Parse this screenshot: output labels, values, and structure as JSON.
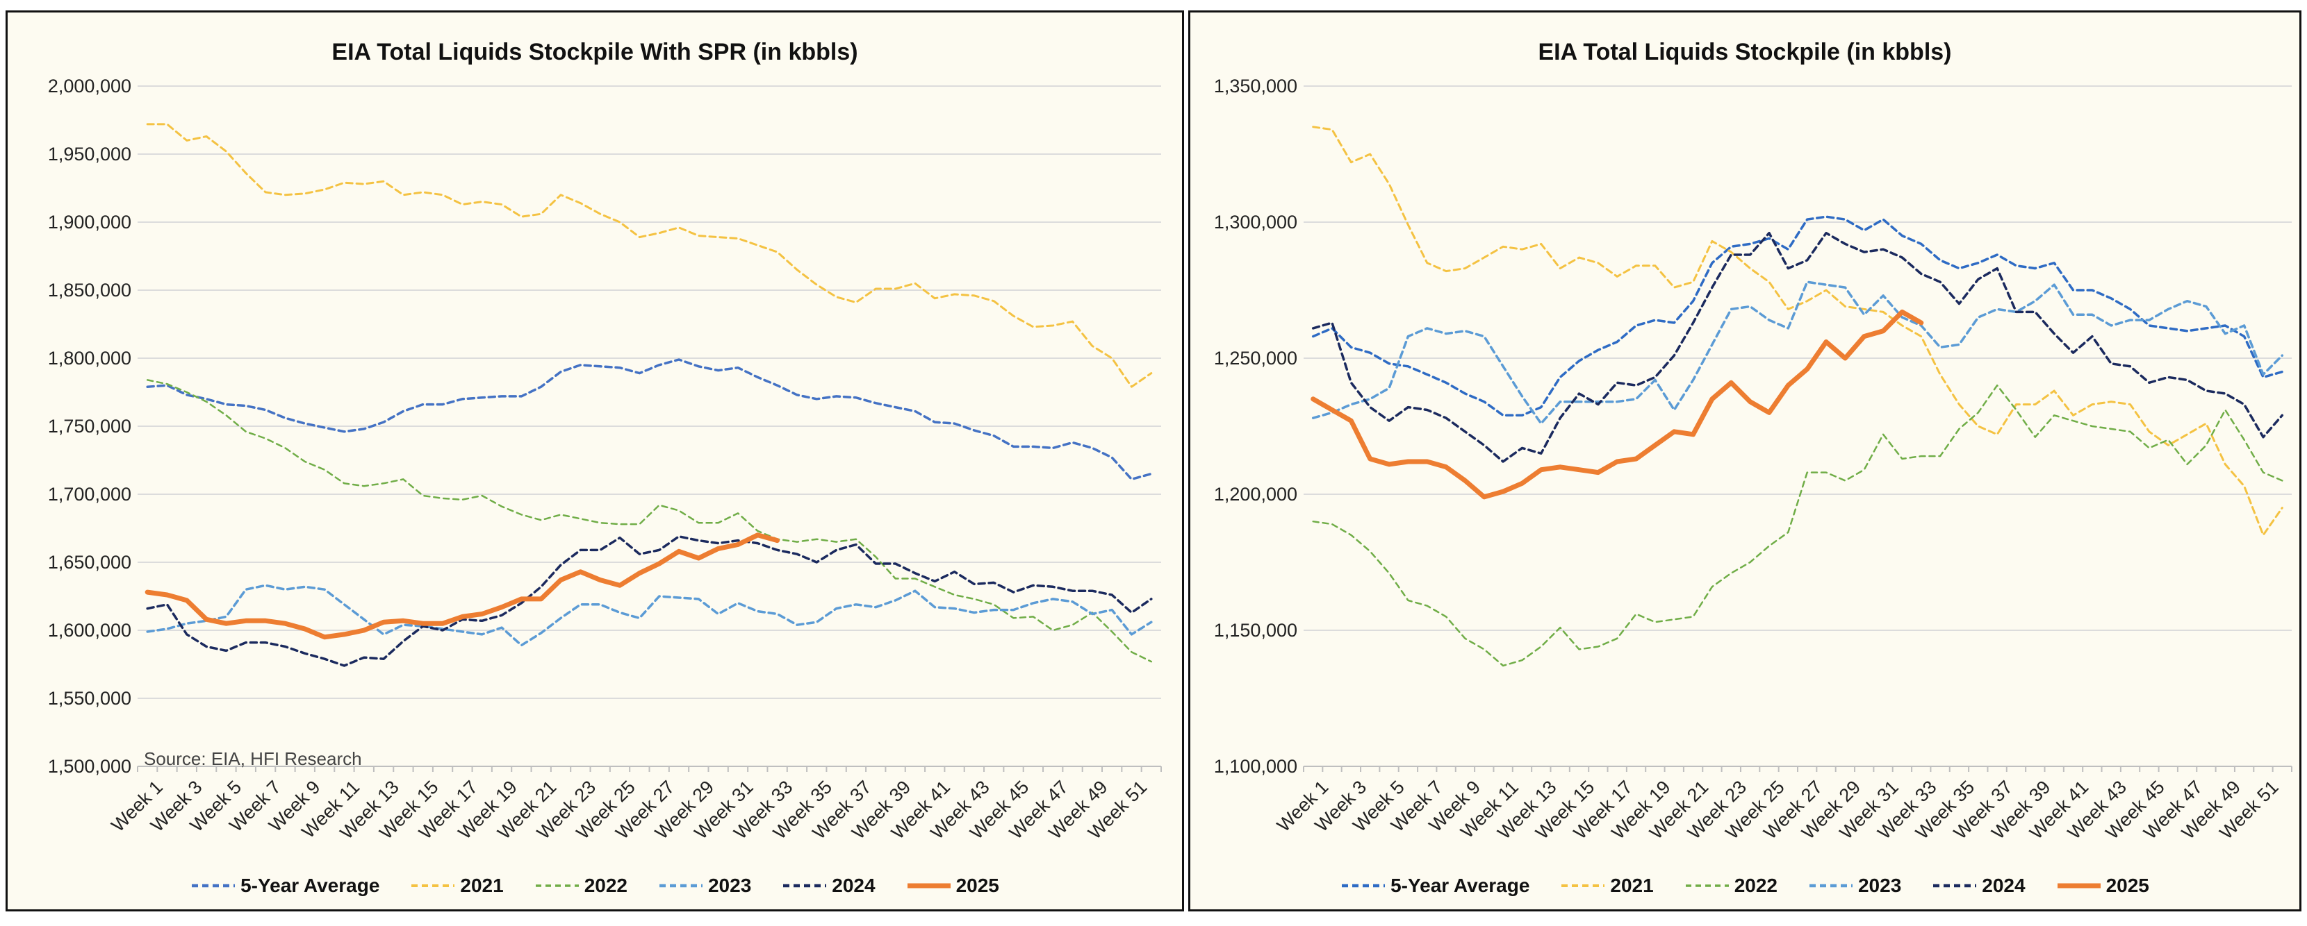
{
  "chart_data": [
    {
      "type": "line",
      "title": "EIA Total Liquids Stockpile With SPR (in kbbls)",
      "source": "Source: EIA, HFI Research",
      "xlabel": "",
      "ylabel": "",
      "ylim": [
        1500000,
        2000000
      ],
      "ytick_step": 50000,
      "ytick_labels": [
        "1,500,000",
        "1,550,000",
        "1,600,000",
        "1,650,000",
        "1,700,000",
        "1,750,000",
        "1,800,000",
        "1,850,000",
        "1,900,000",
        "1,950,000",
        "2,000,000"
      ],
      "grid": true,
      "legend_position": "bottom",
      "value_scale": 1000,
      "series": [
        {
          "name": "5-Year Average",
          "color": "#4472c4",
          "values": [
            1779,
            1780,
            1773,
            1770,
            1766,
            1765,
            1762,
            1756,
            1752,
            1749,
            1746,
            1748,
            1753,
            1761,
            1766,
            1766,
            1770,
            1771,
            1772,
            1772,
            1779,
            1790,
            1795,
            1794,
            1793,
            1789,
            1795,
            1799,
            1794,
            1791,
            1793,
            1786,
            1780,
            1773,
            1770,
            1772,
            1771,
            1767,
            1764,
            1761,
            1753,
            1752,
            1747,
            1743,
            1735,
            1735,
            1734,
            1738,
            1734,
            1727,
            1711,
            1715
          ]
        },
        {
          "name": "2021",
          "color": "#f4c242",
          "values": [
            1972,
            1972,
            1960,
            1963,
            1952,
            1936,
            1922,
            1920,
            1921,
            1924,
            1929,
            1928,
            1930,
            1920,
            1922,
            1920,
            1913,
            1915,
            1913,
            1904,
            1906,
            1920,
            1914,
            1906,
            1900,
            1889,
            1892,
            1896,
            1890,
            1889,
            1888,
            1883,
            1878,
            1865,
            1854,
            1845,
            1841,
            1851,
            1851,
            1855,
            1844,
            1847,
            1846,
            1842,
            1831,
            1823,
            1824,
            1827,
            1809,
            1800,
            1779,
            1789
          ]
        },
        {
          "name": "2022",
          "color": "#70ad47",
          "values": [
            1784,
            1781,
            1775,
            1768,
            1758,
            1746,
            1741,
            1734,
            1724,
            1718,
            1708,
            1706,
            1708,
            1711,
            1699,
            1697,
            1696,
            1699,
            1691,
            1685,
            1681,
            1685,
            1682,
            1679,
            1678,
            1678,
            1692,
            1688,
            1679,
            1679,
            1686,
            1673,
            1667,
            1665,
            1667,
            1665,
            1667,
            1654,
            1638,
            1638,
            1632,
            1626,
            1623,
            1619,
            1609,
            1610,
            1600,
            1604,
            1613,
            1599,
            1584,
            1577
          ]
        },
        {
          "name": "2023",
          "color": "#5b9bd5",
          "values": [
            1599,
            1601,
            1605,
            1607,
            1610,
            1630,
            1633,
            1630,
            1632,
            1630,
            1619,
            1608,
            1597,
            1604,
            1603,
            1601,
            1599,
            1597,
            1602,
            1589,
            1598,
            1609,
            1619,
            1619,
            1613,
            1609,
            1625,
            1624,
            1623,
            1612,
            1620,
            1614,
            1612,
            1604,
            1606,
            1616,
            1619,
            1617,
            1622,
            1629,
            1617,
            1616,
            1613,
            1615,
            1615,
            1620,
            1623,
            1621,
            1612,
            1615,
            1597,
            1606
          ]
        },
        {
          "name": "2024",
          "color": "#1b2a5e",
          "values": [
            1616,
            1619,
            1597,
            1588,
            1585,
            1591,
            1591,
            1588,
            1583,
            1579,
            1574,
            1580,
            1579,
            1592,
            1603,
            1600,
            1608,
            1607,
            1611,
            1620,
            1632,
            1648,
            1659,
            1659,
            1668,
            1656,
            1659,
            1669,
            1666,
            1664,
            1666,
            1664,
            1659,
            1656,
            1650,
            1659,
            1663,
            1649,
            1649,
            1642,
            1636,
            1643,
            1634,
            1635,
            1628,
            1633,
            1632,
            1629,
            1629,
            1626,
            1613,
            1623
          ]
        },
        {
          "name": "2025",
          "color": "#ed7d31",
          "values": [
            1628,
            1626,
            1622,
            1608,
            1605,
            1607,
            1607,
            1605,
            1601,
            1595,
            1597,
            1600,
            1606,
            1607,
            1605,
            1605,
            1610,
            1612,
            1617,
            1623,
            1623,
            1637,
            1643,
            1637,
            1633,
            1642,
            1649,
            1658,
            1653,
            1660,
            1663,
            1670,
            1666
          ]
        }
      ]
    },
    {
      "type": "line",
      "title": "EIA Total Liquids Stockpile (in kbbls)",
      "xlabel": "",
      "ylabel": "",
      "ylim": [
        1100000,
        1350000
      ],
      "ytick_step": 50000,
      "ytick_labels": [
        "1,100,000",
        "1,150,000",
        "1,200,000",
        "1,250,000",
        "1,300,000",
        "1,350,000"
      ],
      "grid": true,
      "legend_position": "bottom",
      "value_scale": 1000,
      "series": [
        {
          "name": "5-Year Average",
          "color": "#2e6bc4",
          "values": [
            1258,
            1261,
            1254,
            1252,
            1248,
            1247,
            1244,
            1241,
            1237,
            1234,
            1229,
            1229,
            1232,
            1243,
            1249,
            1253,
            1256,
            1262,
            1264,
            1263,
            1271,
            1285,
            1291,
            1292,
            1294,
            1290,
            1301,
            1302,
            1301,
            1297,
            1301,
            1295,
            1292,
            1286,
            1283,
            1285,
            1288,
            1284,
            1283,
            1285,
            1275,
            1275,
            1272,
            1268,
            1262,
            1261,
            1260,
            1261,
            1262,
            1258,
            1243,
            1245
          ]
        },
        {
          "name": "2021",
          "color": "#f4c242",
          "values": [
            1335,
            1334,
            1322,
            1325,
            1314,
            1299,
            1285,
            1282,
            1283,
            1287,
            1291,
            1290,
            1292,
            1283,
            1287,
            1285,
            1280,
            1284,
            1284,
            1276,
            1278,
            1293,
            1289,
            1283,
            1278,
            1268,
            1271,
            1275,
            1269,
            1268,
            1267,
            1262,
            1258,
            1244,
            1233,
            1225,
            1222,
            1233,
            1233,
            1238,
            1229,
            1233,
            1234,
            1233,
            1223,
            1218,
            1222,
            1226,
            1211,
            1203,
            1185,
            1195
          ]
        },
        {
          "name": "2022",
          "color": "#70ad47",
          "values": [
            1190,
            1189,
            1185,
            1179,
            1171,
            1161,
            1159,
            1155,
            1147,
            1143,
            1137,
            1139,
            1144,
            1151,
            1143,
            1144,
            1147,
            1156,
            1153,
            1154,
            1155,
            1166,
            1171,
            1175,
            1181,
            1186,
            1208,
            1208,
            1205,
            1209,
            1222,
            1213,
            1214,
            1214,
            1224,
            1230,
            1240,
            1231,
            1221,
            1229,
            1227,
            1225,
            1224,
            1223,
            1217,
            1220,
            1211,
            1218,
            1231,
            1220,
            1208,
            1205
          ]
        },
        {
          "name": "2023",
          "color": "#5b9bd5",
          "values": [
            1228,
            1230,
            1233,
            1235,
            1239,
            1258,
            1261,
            1259,
            1260,
            1258,
            1247,
            1236,
            1226,
            1234,
            1234,
            1234,
            1234,
            1235,
            1242,
            1231,
            1242,
            1255,
            1268,
            1269,
            1264,
            1261,
            1278,
            1277,
            1276,
            1266,
            1273,
            1265,
            1262,
            1254,
            1255,
            1265,
            1268,
            1267,
            1271,
            1277,
            1266,
            1266,
            1262,
            1264,
            1264,
            1268,
            1271,
            1269,
            1259,
            1262,
            1244,
            1251
          ]
        },
        {
          "name": "2024",
          "color": "#1b2a5e",
          "values": [
            1261,
            1263,
            1241,
            1232,
            1227,
            1232,
            1231,
            1228,
            1223,
            1218,
            1212,
            1217,
            1215,
            1228,
            1237,
            1233,
            1241,
            1240,
            1243,
            1251,
            1263,
            1276,
            1288,
            1288,
            1296,
            1283,
            1286,
            1296,
            1292,
            1289,
            1290,
            1287,
            1281,
            1278,
            1270,
            1279,
            1283,
            1267,
            1267,
            1259,
            1252,
            1258,
            1248,
            1247,
            1241,
            1243,
            1242,
            1238,
            1237,
            1233,
            1221,
            1229
          ]
        },
        {
          "name": "2025",
          "color": "#ed7d31",
          "values": [
            1235,
            1231,
            1227,
            1213,
            1211,
            1212,
            1212,
            1210,
            1205,
            1199,
            1201,
            1204,
            1209,
            1210,
            1209,
            1208,
            1212,
            1213,
            1218,
            1223,
            1222,
            1235,
            1241,
            1234,
            1230,
            1240,
            1246,
            1256,
            1250,
            1258,
            1260,
            1267,
            1263
          ]
        }
      ]
    }
  ],
  "x_tick_labels": [
    "Week 1",
    "Week 3",
    "Week 5",
    "Week 7",
    "Week 9",
    "Week 11",
    "Week 13",
    "Week 15",
    "Week 17",
    "Week 19",
    "Week 21",
    "Week 23",
    "Week 25",
    "Week 27",
    "Week 29",
    "Week 31",
    "Week 33",
    "Week 35",
    "Week 37",
    "Week 39",
    "Week 41",
    "Week 43",
    "Week 45",
    "Week 47",
    "Week 49",
    "Week 51"
  ],
  "week_count": 52
}
